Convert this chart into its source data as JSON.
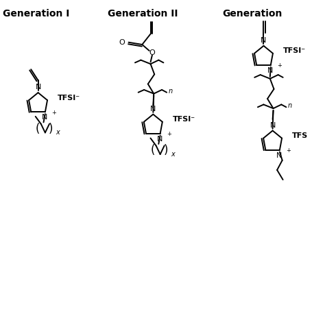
{
  "background": "#ffffff",
  "gen1_label": "Generation I",
  "gen2_label": "Generation II",
  "gen3_label": "Generation",
  "line_color": "#000000",
  "line_width": 1.4,
  "font_size": 8,
  "bold_font_size": 10,
  "xlim": [
    0,
    10
  ],
  "ylim": [
    0,
    10
  ]
}
